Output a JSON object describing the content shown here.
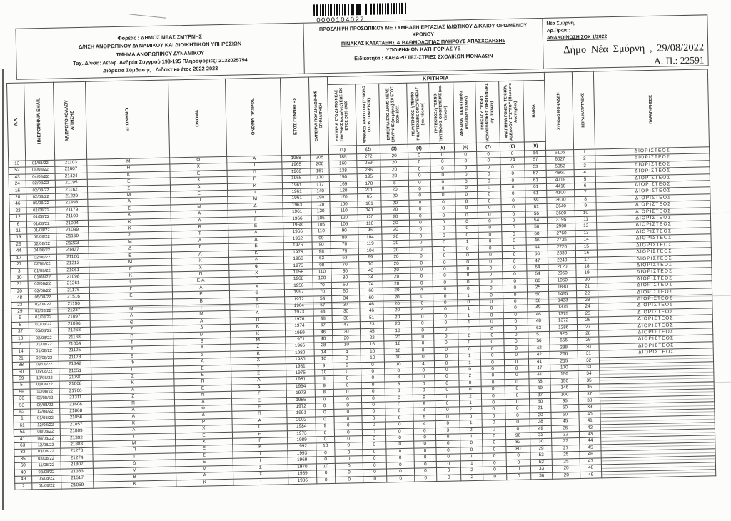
{
  "page": {
    "barcode_number": "0000104027",
    "header_left": {
      "lines": [
        "Φορέας : ΔΗΜΟΣ ΝΕΑΣ ΣΜΥΡΝΗΣ",
        "Δ/ΝΣΗ ΑΝΘΡΩΠΙΝΟΥ ΔΥΝΑΜΙΚΟΥ ΚΑΙ ΔΙΟΙΚΗΤΙΚΩΝ ΥΠΗΡΕΣΙΩΝ",
        "ΤΜΗΜΑ ΑΝΘΡΩΠΙΝΟΥ ΔΥΝΑΜΙΚΟΥ",
        "Ταχ. Δ/νση: Λεωφ. Ανδρέα Συγγρού 193-195 Πληροφορίες: 2132025794",
        "Διάρκεια Σύμβασης : Διδακτικό έτος 2022-2023"
      ]
    },
    "header_center": {
      "lines": [
        "ΠΡΟΣΛΗΨΗ ΠΡΟΣΩΠΙΚΟΥ ΜΕ ΣΥΜΒΑΣΗ ΕΡΓΑΣΙΑΣ ΙΔΙΩΤΙΚΟΥ ΔΙΚΑΙΟΥ ΟΡΙΣΜΕΝΟΥ ΧΡΟΝΟΥ",
        "ΠΙΝΑΚΑΣ ΚΑΤΑΤΑΞΗΣ & ΒΑΘΜΟΛΟΓΙΑΣ ΠΛΗΡΟΥΣ ΑΠΑΣΧΟΛΗΣΗΣ",
        "ΥΠΟΨΗΦΙΩΝ ΚΑΤΗΓΟΡΙΑΣ ΥΕ",
        "Ειδικότητα : ΚΑΘΑΡΙΣΤΕΣ-ΣΤΡΙΕΣ ΣΧΟΛΙΚΩΝ ΜΟΝΑΔΩΝ"
      ]
    },
    "header_right": {
      "place": "Νέα Σμύρνη,",
      "protocol_label": "Αρ.Πρωτ.:",
      "announcement": "ΑΝΑΚΟΙΝΩΣΗ ΣΟΧ 1/2022"
    },
    "stamp": {
      "line1": "Δήμο  Νέα  Σμύρνη , 29/08/2022",
      "line2": "Α. Π.: 22591"
    }
  },
  "table": {
    "group_header": "ΚΡΙΤΗΡΙΑ",
    "columns": [
      {
        "key": "aa",
        "label": "Α.Α"
      },
      {
        "key": "date",
        "label": "ΗΜΕΡΟΜΗΝΙΑ EMAIL"
      },
      {
        "key": "protocol",
        "label": "ΑΡ.ΠΡΩΤΟΚΟΛΛΟΥ ΑΙΤΗΣΗΣ"
      },
      {
        "key": "surname",
        "label": "ΕΠΩΝΥΜΟ"
      },
      {
        "key": "name",
        "label": "ΟΝΟΜΑ"
      },
      {
        "key": "father",
        "label": "ΟΝΟΜΑ ΠΑΤΡΟΣ"
      },
      {
        "key": "birth_year",
        "label": "ΕΤΟΣ ΓΕΝΝΗΣΗΣ"
      },
      {
        "key": "declared_experience",
        "label": "ΕΜΠΕΙΡΙΑ ΠΟΥ ΔΗΛΩΘΗΚΕ ΣΤΗΝ ΑΙΤΗΣΗ"
      },
      {
        "key": "c1",
        "label": "ΕΜΠΕΙΡΙΑ ΣΤΟ ΔΗΜΟ ΝΕΑΣ ΣΜΥΡΝΗΣ (σε μήνες) ΕΩΣ ΣΧ ΕΤΟΣ 2019-2020",
        "num": "(1)"
      },
      {
        "key": "c2",
        "label": "ΑΡΙΘΜΟΣ ΑΙΘΟΥΣΩΝ (ΣΥΝΟΛΟ ΟΛΩΝ ΤΩΝ ΕΤΩΝ)",
        "num": "(2)"
      },
      {
        "key": "c3",
        "label": "ΕΜΠΕΙΡΙΑ ΣΤΟ ΔΗΜΟ ΝΕΑΣ ΣΜΥΡΝΗΣ (σε μήνες) ΣΧ ΕΤΟΣ 2020-2021",
        "num": "(3)"
      },
      {
        "key": "c4",
        "label": "ΠΟΛΥΤΕΚΝΟΣ ή ΤΕΚΝΟ ΠΟΛΥΤΕΚΝΗΣ ΟΙΚΟΓΕΝΕΙΑΣ (αρ. τέκνων)",
        "num": "(4)"
      },
      {
        "key": "c5",
        "label": "ΤΡΙΤΕΚΝΟΣ ή ΤΕΚΝΟ ΤΡΙΤΕΚΝΗΣ ΟΙΚΟΓΕΝΕΙΑΣ (αρ. τέκνων)",
        "num": "(5)"
      },
      {
        "key": "c6",
        "label": "ΑΝΗΛΙΚΑ ΤΕΚΝΑ (αριθμ. ανηλίκων τέκνων)",
        "num": "(6)"
      },
      {
        "key": "c7",
        "label": "ΓΟΝΕΑΣ ή ΤΕΚΝΟ ΜΟΝΟΓΟΝΕΪΚΗΣ ΟΙΚΟΓΕΝΕΙΑΣ (αρ. τέκνων)",
        "num": "(7)"
      },
      {
        "key": "c8",
        "label": "ΑΝΑΠΗΡΙΑ ΓΟΝΕΑ, ΤΕΚΝΟΥ, ΑΔΕΛΦΟΥ, ΣΥΖΥΓΟΥ (Ποσοστό Αναπηρίας)",
        "num": "(8)"
      },
      {
        "key": "age",
        "label": "ΗΛΙΚΙΑ",
        "num": "(9)"
      },
      {
        "key": "total",
        "label": "ΣΥΝΟΛΟ ΜΟΝΑΔΩΝ"
      },
      {
        "key": "rank",
        "label": "ΣΕΙΡΑ ΚΑΤΑΤΑΞΗΣ"
      },
      {
        "key": "remarks",
        "label": "ΠΑΡΑΤΗΡΗΣΕΙΣ"
      }
    ],
    "rows": [
      [
        "13",
        "01/08/22",
        "21103",
        "Μ",
        "Φ",
        "Α",
        "1958",
        "205",
        "185",
        "272",
        "20",
        "0",
        "0",
        "0",
        "0",
        "0",
        "64",
        "6105",
        "1",
        "ΔΙΟΡΙΣΤΕΟΣ"
      ],
      [
        "52",
        "08/08/22",
        "21607",
        "Η",
        "Χ",
        "Ι",
        "1965",
        "200",
        "160",
        "259",
        "20",
        "0",
        "0",
        "0",
        "0",
        "74",
        "57",
        "6027",
        "2",
        "ΔΙΟΡΙΣΤΕΟΣ"
      ],
      [
        "43",
        "04/08/22",
        "21424",
        "Κ",
        "Ε",
        "Π",
        "1969",
        "157",
        "138",
        "236",
        "20",
        "0",
        "0",
        "0",
        "0",
        "0",
        "53",
        "5052",
        "3",
        "ΔΙΟΡΙΣΤΕΟΣ"
      ],
      [
        "24",
        "02/08/22",
        "21195",
        "Ε",
        "Χ",
        "Π",
        "1965",
        "170",
        "150",
        "195",
        "20",
        "0",
        "0",
        "0",
        "0",
        "0",
        "57",
        "4860",
        "4",
        "ΔΙΟΡΙΣΤΕΟΣ"
      ],
      [
        "16",
        "02/08/22",
        "21162",
        "Σ",
        "Α",
        "Κ",
        "1961",
        "177",
        "169",
        "170",
        "8",
        "0",
        "0",
        "0",
        "0",
        "0",
        "61",
        "4719",
        "5",
        "ΔΙΟΡΙΣΤΕΟΣ"
      ],
      [
        "28",
        "02/08/22",
        "21229",
        "Μ",
        "Ε",
        "Ι",
        "1961",
        "140",
        "120",
        "201",
        "20",
        "0",
        "0",
        "0",
        "0",
        "0",
        "61",
        "4410",
        "6",
        "ΔΙΟΡΙΣΤΕΟΣ"
      ],
      [
        "46",
        "05/08/22",
        "21493",
        "Α",
        "Π",
        "Μ",
        "1961",
        "190",
        "170",
        "65",
        "20",
        "0",
        "0",
        "0",
        "0",
        "0",
        "61",
        "4100",
        "7",
        "ΔΙΟΡΙΣΤΕΟΣ"
      ],
      [
        "22",
        "02/08/22",
        "21179",
        "Σ",
        "Μ",
        "Δ",
        "1963",
        "120",
        "100",
        "161",
        "20",
        "0",
        "0",
        "0",
        "0",
        "0",
        "59",
        "3670",
        "8",
        "ΔΙΟΡΙΣΤΕΟΣ"
      ],
      [
        "12",
        "01/08/22",
        "21100",
        "Κ",
        "Α",
        "Ι",
        "1961",
        "130",
        "110",
        "141",
        "20",
        "0",
        "0",
        "0",
        "0",
        "0",
        "61",
        "3640",
        "9",
        "ΔΙΟΡΙΣΤΕΟΣ"
      ],
      [
        "6",
        "01/08/22",
        "21094",
        "Κ",
        "Α",
        "Γ",
        "1966",
        "105",
        "120",
        "120",
        "20",
        "0",
        "0",
        "0",
        "0",
        "0",
        "56",
        "3600",
        "10",
        "ΔΙΟΡΙΣΤΕΟΣ"
      ],
      [
        "11",
        "01/08/22",
        "21099",
        "Κ",
        "Β",
        "Ε",
        "1968",
        "105",
        "105",
        "110",
        "20",
        "0",
        "0",
        "0",
        "0",
        "0",
        "54",
        "3195",
        "11",
        "ΔΙΟΡΙΣΤΕΟΣ"
      ],
      [
        "19",
        "02/08/22",
        "21169",
        "Σ",
        "Τ",
        "Λ",
        "1966",
        "110",
        "90",
        "96",
        "20",
        "6",
        "0",
        "0",
        "0",
        "0",
        "56",
        "2900",
        "12",
        "ΔΙΟΡΙΣΤΕΟΣ"
      ],
      [
        "26",
        "02/08/22",
        "21203",
        "Μ",
        "Α",
        "Δ",
        "1962",
        "99",
        "80",
        "104",
        "20",
        "0",
        "0",
        "0",
        "0",
        "0",
        "60",
        "2760",
        "13",
        "ΔΙΟΡΙΣΤΕΟΣ"
      ],
      [
        "44",
        "04/08/22",
        "21437",
        "Δ",
        "Γ",
        "Ε",
        "1976",
        "90",
        "70",
        "119",
        "20",
        "0",
        "0",
        "1",
        "0",
        "0",
        "46",
        "2735",
        "14",
        "ΔΙΟΡΙΣΤΕΟΣ"
      ],
      [
        "17",
        "02/08/22",
        "21166",
        "Ε",
        "Λ",
        "Κ",
        "1978",
        "98",
        "79",
        "104",
        "20",
        "0",
        "0",
        "0",
        "0",
        "0",
        "44",
        "2720",
        "15",
        "ΔΙΟΡΙΣΤΕΟΣ"
      ],
      [
        "27",
        "02/08/22",
        "21213",
        "Μ",
        "Χ",
        "Δ",
        "1966",
        "63",
        "63",
        "99",
        "20",
        "0",
        "0",
        "0",
        "0",
        "0",
        "56",
        "2330",
        "16",
        "ΔΙΟΡΙΣΤΕΟΣ"
      ],
      [
        "3",
        "01/08/22",
        "21061",
        "Γ",
        "Χ",
        "Φ",
        "1975",
        "90",
        "70",
        "70",
        "20",
        "0",
        "0",
        "0",
        "0",
        "0",
        "47",
        "2240",
        "17",
        "ΔΙΟΡΙΣΤΕΟΣ"
      ],
      [
        "10",
        "01/08/22",
        "21098",
        "Κ",
        "Π",
        "Χ",
        "1958",
        "110",
        "80",
        "40",
        "20",
        "0",
        "0",
        "0",
        "0",
        "0",
        "64",
        "2120",
        "18",
        "ΔΙΟΡΙΣΤΕΟΣ"
      ],
      [
        "31",
        "03/08/22",
        "21261",
        "Γ",
        "Ε-Α",
        "Γ",
        "1968",
        "100",
        "80",
        "34",
        "20",
        "0",
        "0",
        "0",
        "0",
        "0",
        "54",
        "2060",
        "19",
        "ΔΙΟΡΙΣΤΕΟΣ"
      ],
      [
        "20",
        "02/08/22",
        "21176",
        "Γ",
        "Α",
        "Χ",
        "1956",
        "70",
        "50",
        "74",
        "20",
        "0",
        "0",
        "0",
        "0",
        "0",
        "66",
        "1950",
        "20",
        "ΔΙΟΡΙΣΤΕΟΣ"
      ],
      [
        "48",
        "05/08/22",
        "21516",
        "Ε",
        "Ρ",
        "Θ",
        "1997",
        "70",
        "50",
        "60",
        "20",
        "4",
        "0",
        "0",
        "0",
        "0",
        "25",
        "1830",
        "21",
        "ΔΙΟΡΙΣΤΕΟΣ"
      ],
      [
        "23",
        "02/08/22",
        "21190",
        "Ι",
        "Β",
        "Δ",
        "1972",
        "54",
        "34",
        "60",
        "20",
        "0",
        "0",
        "1",
        "0",
        "0",
        "50",
        "1455",
        "22",
        "ΔΙΟΡΙΣΤΕΟΣ"
      ],
      [
        "29",
        "02/08/22",
        "21237",
        "Μ",
        "Ι",
        "Π",
        "1964",
        "57",
        "37",
        "46",
        "20",
        "0",
        "0",
        "0",
        "0",
        "0",
        "58",
        "1433",
        "23",
        "ΔΙΟΡΙΣΤΕΟΣ"
      ],
      [
        "9",
        "01/08/22",
        "21097",
        "Λ",
        "Μ",
        "Α",
        "1973",
        "48",
        "30",
        "46",
        "20",
        "4",
        "0",
        "1",
        "0",
        "0",
        "49",
        "1375",
        "24",
        "ΔΙΟΡΙΣΤΕΟΣ"
      ],
      [
        "8",
        "01/08/22",
        "21096",
        "Θ",
        "Α",
        "Π",
        "1976",
        "48",
        "30",
        "51",
        "20",
        "0",
        "0",
        "1",
        "0",
        "0",
        "46",
        "1375",
        "25",
        "ΔΙΟΡΙΣΤΕΟΣ"
      ],
      [
        "37",
        "03/08/22",
        "21268",
        "Σ",
        "Δ",
        "Κ",
        "1974",
        "67",
        "47",
        "23",
        "20",
        "0",
        "0",
        "1",
        "0",
        "0",
        "48",
        "1372",
        "26",
        "ΔΙΟΡΙΣΤΕΟΣ"
      ],
      [
        "18",
        "02/08/22",
        "21168",
        "Π",
        "Μ",
        "Κ",
        "1959",
        "46",
        "30",
        "45",
        "18",
        "0",
        "0",
        "0",
        "0",
        "0",
        "63",
        "1286",
        "27",
        "ΔΙΟΡΙΣΤΕΟΣ"
      ],
      [
        "4",
        "01/08/22",
        "21064",
        "Τ",
        "Β",
        "Μ",
        "1971",
        "40",
        "20",
        "22",
        "20",
        "0",
        "0",
        "0",
        "0",
        "0",
        "51",
        "920",
        "28",
        "ΔΙΟΡΙΣΤΕΟΣ"
      ],
      [
        "14",
        "01/08/22",
        "21125",
        "Τ",
        "Α",
        "Σ",
        "1966",
        "28",
        "10",
        "16",
        "18",
        "0",
        "0",
        "0",
        "0",
        "0",
        "56",
        "656",
        "29",
        "ΔΙΟΡΙΣΤΕΟΣ"
      ],
      [
        "21",
        "02/08/22",
        "21178",
        "Β",
        "Σ",
        "Κ",
        "1980",
        "14",
        "4",
        "10",
        "10",
        "0",
        "0",
        "0",
        "0",
        "0",
        "42",
        "288",
        "30",
        "ΔΙΟΡΙΣΤΕΟΣ"
      ],
      [
        "38",
        "03/08/22",
        "21342",
        "Φ",
        "Α",
        "Χ",
        "1980",
        "10",
        "3",
        "10",
        "10",
        "0",
        "0",
        "1",
        "0",
        "0",
        "42",
        "266",
        "31",
        "ΔΙΟΡΙΣΤΕΟΣ"
      ],
      [
        "50",
        "05/08/22",
        "21551",
        "Γ",
        "Ε",
        "Σ",
        "1981",
        "9",
        "0",
        "0",
        "10",
        "4",
        "0",
        "1",
        "0",
        "0",
        "41",
        "215",
        "32",
        ""
      ],
      [
        "59",
        "10/08/22",
        "21790",
        "Σ",
        "Ε",
        "Σ",
        "1975",
        "10",
        "0",
        "0",
        "0",
        "0",
        "0",
        "0",
        "0",
        "0",
        "47",
        "170",
        "33",
        ""
      ],
      [
        "5",
        "01/08/22",
        "21068",
        "Κ",
        "Π",
        "Α",
        "1981",
        "8",
        "0",
        "0",
        "8",
        "0",
        "0",
        "2",
        "0",
        "0",
        "41",
        "156",
        "34",
        ""
      ],
      [
        "56",
        "10/08/22",
        "21766",
        "Λ",
        "Ε",
        "Α",
        "1964",
        "9",
        "0",
        "0",
        "8",
        "0",
        "0",
        "0",
        "0",
        "0",
        "58",
        "150",
        "35",
        ""
      ],
      [
        "36",
        "03/08/22",
        "21311",
        "Ζ",
        "Ν",
        "Γ",
        "1973",
        "8",
        "0",
        "0",
        "8",
        "0",
        "0",
        "0",
        "0",
        "0",
        "49",
        "146",
        "36",
        ""
      ],
      [
        "53",
        "06/08/22",
        "21608",
        "Π",
        "Δ",
        "Ε",
        "1985",
        "0",
        "0",
        "0",
        "0",
        "9",
        "0",
        "2",
        "0",
        "0",
        "37",
        "100",
        "37",
        ""
      ],
      [
        "62",
        "12/08/22",
        "21868",
        "Λ",
        "Φ",
        "Ε",
        "1972",
        "0",
        "0",
        "0",
        "0",
        "9",
        "0",
        "1",
        "0",
        "0",
        "50",
        "95",
        "38",
        ""
      ],
      [
        "1",
        "01/08/22",
        "21056",
        "Α",
        "Δ",
        "Π",
        "1991",
        "0",
        "0",
        "0",
        "0",
        "4",
        "0",
        "2",
        "0",
        "0",
        "31",
        "50",
        "39",
        ""
      ],
      [
        "61",
        "12/08/22",
        "21857",
        "Κ",
        "Ρ",
        "Α",
        "2002",
        "0",
        "0",
        "0",
        "0",
        "5",
        "0",
        "0",
        "0",
        "0",
        "20",
        "50",
        "40",
        ""
      ],
      [
        "54",
        "08/08/22",
        "21809",
        "Λ",
        "Χ",
        "Γ",
        "1984",
        "9",
        "0",
        "0",
        "0",
        "4",
        "0",
        "1",
        "0",
        "0",
        "38",
        "45",
        "41",
        ""
      ],
      [
        "41",
        "04/08/22",
        "21392",
        "Τ",
        "Ε",
        "Η",
        "1973",
        "0",
        "0",
        "0",
        "0",
        "0",
        "3",
        "2",
        "0",
        "0",
        "49",
        "35",
        "42",
        ""
      ],
      [
        "63",
        "12/08/22",
        "21883",
        "Μ",
        "Χ",
        "Γ",
        "1989",
        "0",
        "0",
        "0",
        "0",
        "0",
        "0",
        "1",
        "0",
        "96",
        "33",
        "32",
        "43",
        ""
      ],
      [
        "33",
        "03/08/22",
        "21270",
        "Π",
        "Ε",
        "Κ",
        "1992",
        "10",
        "0",
        "0",
        "0",
        "0",
        "0",
        "0",
        "0",
        "82",
        "30",
        "27",
        "44",
        ""
      ],
      [
        "35",
        "03/08/22",
        "21274",
        "Τ",
        "Σ",
        "Ι",
        "1993",
        "0",
        "0",
        "0",
        "0",
        "0",
        "0",
        "0",
        "0",
        "80",
        "29",
        "27",
        "45",
        ""
      ],
      [
        "60",
        "11/08/22",
        "21807",
        "Δ",
        "Ε",
        "Ι",
        "1969",
        "0",
        "0",
        "0",
        "0",
        "0",
        "0",
        "1",
        "0",
        "0",
        "53",
        "25",
        "46",
        ""
      ],
      [
        "40",
        "03/08/22",
        "21383",
        "Μ",
        "Μ",
        "Σ",
        "1970",
        "10",
        "0",
        "0",
        "0",
        "0",
        "0",
        "1",
        "0",
        "0",
        "52",
        "25",
        "47",
        ""
      ],
      [
        "49",
        "05/08/22",
        "21517",
        "Β",
        "Α",
        "Χ",
        "1989",
        "0",
        "0",
        "0",
        "0",
        "0",
        "0",
        "2",
        "0",
        "0",
        "33",
        "20",
        "48",
        ""
      ],
      [
        "2",
        "01/08/22",
        "21059",
        "Κ",
        "Κ",
        "Ι",
        "1986",
        "0",
        "0",
        "0",
        "0",
        "0",
        "0",
        "2",
        "0",
        "0",
        "36",
        "20",
        "49",
        ""
      ]
    ]
  }
}
